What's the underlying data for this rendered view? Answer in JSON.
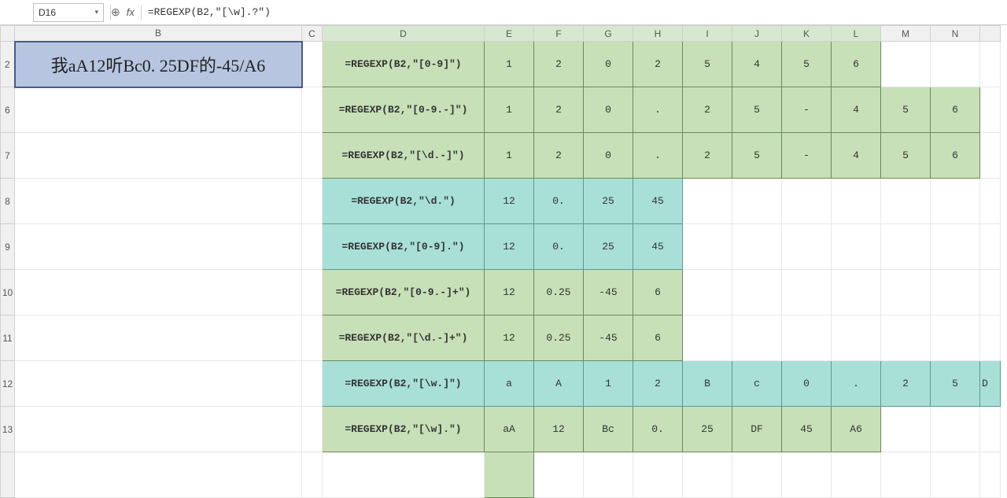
{
  "nameBox": "D16",
  "formulaBar": "=REGEXP(B2,\"[\\w].?\")",
  "columns": [
    "",
    "B",
    "C",
    "D",
    "E",
    "F",
    "G",
    "H",
    "I",
    "J",
    "K",
    "L",
    "M",
    "N",
    ""
  ],
  "rowNumbers": [
    "2",
    "6",
    "7",
    "8",
    "9",
    "10",
    "11",
    "12",
    "13",
    ""
  ],
  "b2value": "我aA12听Bc0. 25DF的-45/A6",
  "rows": [
    {
      "style": "green",
      "formula": "=REGEXP(B2,\"[0-9]\")",
      "cells": [
        "1",
        "2",
        "0",
        "2",
        "5",
        "4",
        "5",
        "6",
        "",
        ""
      ],
      "span": 8
    },
    {
      "style": "green",
      "formula": "=REGEXP(B2,\"[0-9.-]\")",
      "cells": [
        "1",
        "2",
        "0",
        ".",
        "2",
        "5",
        "-",
        "4",
        "5",
        "6"
      ],
      "span": 10
    },
    {
      "style": "green",
      "formula": "=REGEXP(B2,\"[\\d.-]\")",
      "cells": [
        "1",
        "2",
        "0",
        ".",
        "2",
        "5",
        "-",
        "4",
        "5",
        "6"
      ],
      "span": 10
    },
    {
      "style": "teal",
      "formula": "=REGEXP(B2,\"\\d.\")",
      "cells": [
        "12",
        "0.",
        "25",
        "45",
        "",
        "",
        "",
        "",
        "",
        ""
      ],
      "span": 4
    },
    {
      "style": "teal",
      "formula": "=REGEXP(B2,\"[0-9].\")",
      "cells": [
        "12",
        "0.",
        "25",
        "45",
        "",
        "",
        "",
        "",
        "",
        ""
      ],
      "span": 4
    },
    {
      "style": "green",
      "formula": "=REGEXP(B2,\"[0-9.-]+\")",
      "cells": [
        "12",
        "0.25",
        "-45",
        "6",
        "",
        "",
        "",
        "",
        "",
        ""
      ],
      "span": 4
    },
    {
      "style": "green",
      "formula": "=REGEXP(B2,\"[\\d.-]+\")",
      "cells": [
        "12",
        "0.25",
        "-45",
        "6",
        "",
        "",
        "",
        "",
        "",
        ""
      ],
      "span": 4
    },
    {
      "style": "teal",
      "formula": "=REGEXP(B2,\"[\\w.]\")",
      "cells": [
        "a",
        "A",
        "1",
        "2",
        "B",
        "c",
        "0",
        ".",
        "2",
        "5"
      ],
      "span": 11,
      "extra": "D"
    },
    {
      "style": "green",
      "formula": "=REGEXP(B2,\"[\\w].\")",
      "cells": [
        "aA",
        "12",
        "Bc",
        "0.",
        "25",
        "DF",
        "45",
        "A6",
        "",
        ""
      ],
      "span": 8
    }
  ],
  "colors": {
    "green_bg": "#c8e0b8",
    "green_border": "#6a8a5a",
    "teal_bg": "#a8e0d8",
    "teal_border": "#5a9a90",
    "b2_bg": "#b8c5e0",
    "b2_border": "#4a5a8a",
    "header_bg": "#f0f0f0",
    "grid_border": "#e8e8e8"
  }
}
